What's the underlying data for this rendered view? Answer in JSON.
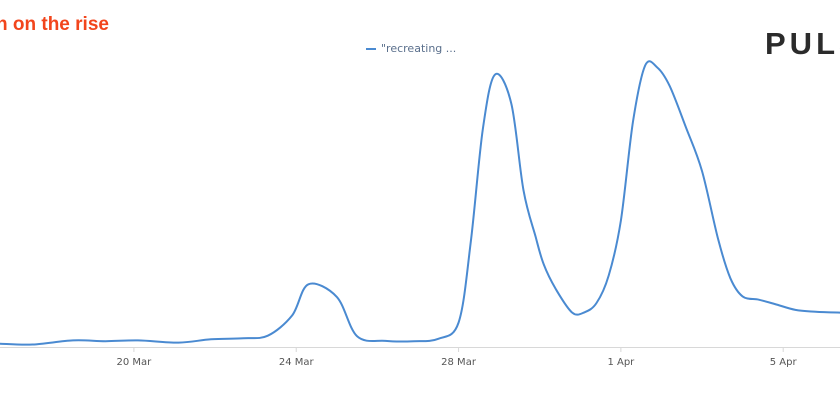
{
  "header": {
    "title": "n on the rise",
    "brand": "PULS"
  },
  "chart_data": {
    "type": "line",
    "title": "n on the rise",
    "xlabel": "",
    "ylabel": "",
    "x_ticks": [
      "20 Mar",
      "24 Mar",
      "28 Mar",
      "1 Apr",
      "5 Apr"
    ],
    "x_tick_days": [
      20,
      24,
      28,
      32,
      36
    ],
    "xlim": [
      16.7,
      37.4
    ],
    "ylim": [
      0,
      100
    ],
    "grid": false,
    "legend_position": "top-center",
    "series": [
      {
        "name": "\"recreating ...",
        "color": "#4a8ad1",
        "x": [
          16.7,
          17.5,
          18.5,
          19.3,
          20.1,
          21.1,
          21.9,
          22.7,
          23.3,
          23.9,
          24.3,
          25.0,
          25.5,
          26.2,
          26.9,
          27.5,
          28.0,
          28.3,
          28.6,
          28.9,
          29.3,
          29.6,
          29.9,
          30.1,
          30.4,
          30.8,
          31.1,
          31.4,
          31.7,
          32.0,
          32.3,
          32.6,
          32.9,
          33.2,
          33.6,
          34.0,
          34.4,
          34.7,
          35.0,
          35.4,
          35.8,
          36.3,
          36.8,
          37.4
        ],
        "values": [
          1.2,
          0.9,
          2.4,
          2.1,
          2.4,
          1.6,
          2.8,
          3.2,
          4.1,
          11.5,
          22.8,
          18.2,
          3.9,
          2.2,
          2.1,
          3.0,
          8.9,
          38.0,
          79.4,
          99.1,
          88.5,
          57.0,
          40.0,
          30.0,
          21.0,
          12.5,
          12.6,
          16.0,
          26.0,
          46.0,
          82.0,
          102.4,
          101.6,
          95.0,
          80.0,
          64.0,
          39.0,
          25.0,
          18.4,
          17.2,
          15.6,
          13.5,
          12.8,
          12.5
        ]
      }
    ]
  }
}
